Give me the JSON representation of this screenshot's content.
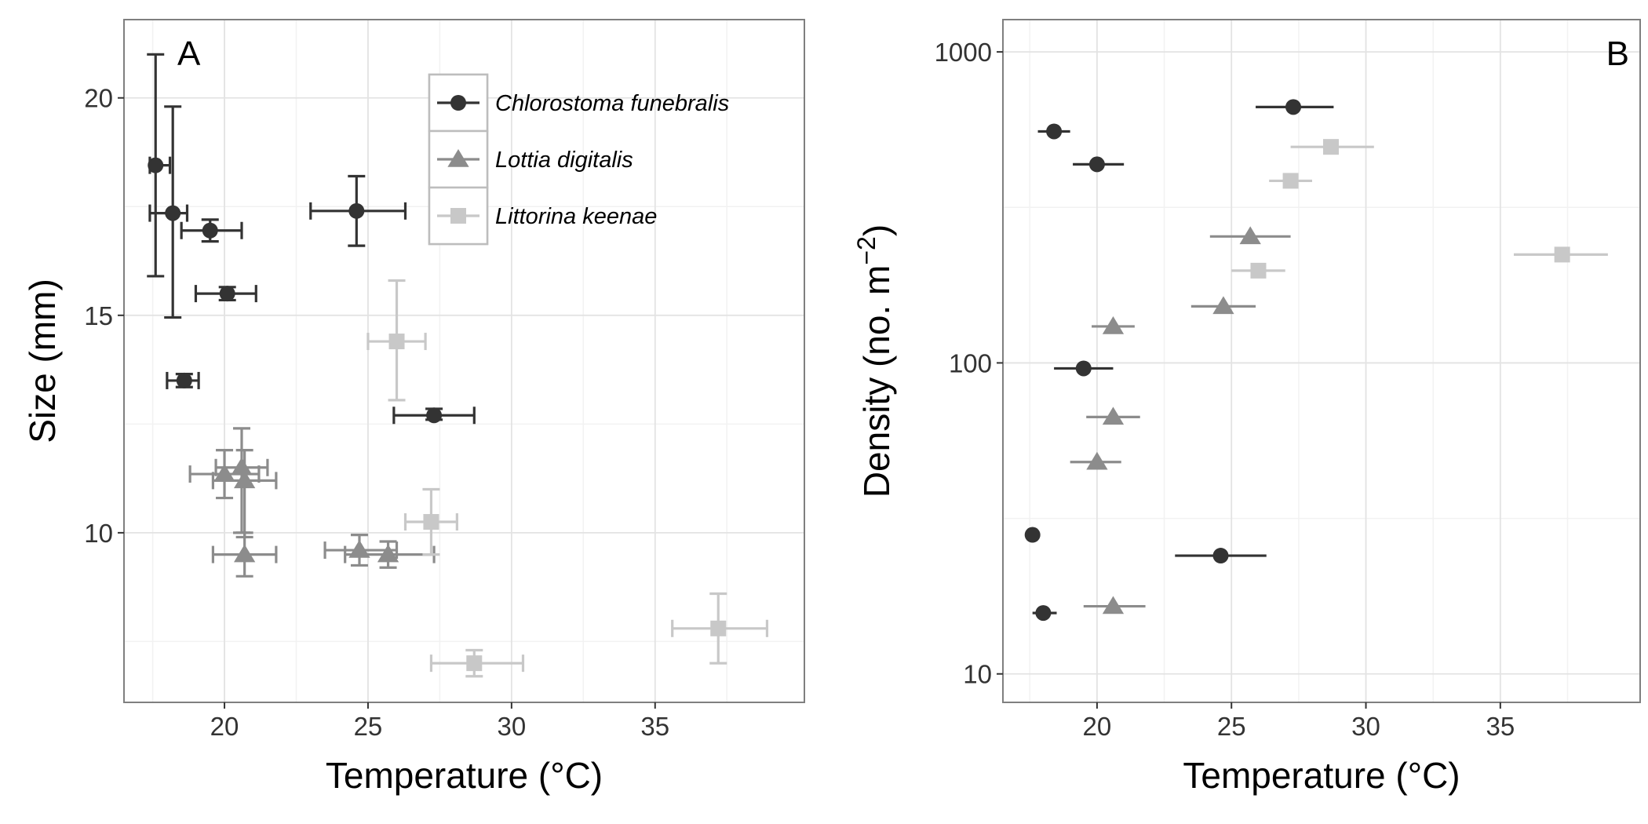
{
  "figure": {
    "legend": {
      "entries": [
        {
          "label": "Chlorostoma funebralis",
          "series": "chlorostoma"
        },
        {
          "label": "Lottia digitalis",
          "series": "lottia"
        },
        {
          "label": "Littorina keenae",
          "series": "littorina"
        }
      ]
    }
  },
  "chart_data": [
    {
      "panel_label": "A",
      "type": "scatter",
      "xlabel": "Temperature (°C)",
      "ylabel": "Size (mm)",
      "xlim": [
        16.5,
        40.2
      ],
      "ylim": [
        6.1,
        21.8
      ],
      "xticks": [
        20,
        25,
        30,
        35
      ],
      "yticks": [
        10,
        15,
        20
      ],
      "x_tick_labels": [
        "20",
        "25",
        "30",
        "35"
      ],
      "y_tick_labels": [
        "10",
        "15",
        "20"
      ],
      "grid": true,
      "legend_position": "top-right",
      "series": [
        {
          "name": "Chlorostoma funebralis",
          "key": "chlorostoma",
          "marker": "circle",
          "color": "#333333",
          "points": [
            {
              "x": 17.6,
              "y": 18.45,
              "xerr": [
                17.4,
                18.1
              ],
              "yerr": [
                15.9,
                21.0
              ]
            },
            {
              "x": 18.2,
              "y": 17.35,
              "xerr": [
                17.4,
                18.7
              ],
              "yerr": [
                14.95,
                19.8
              ]
            },
            {
              "x": 19.5,
              "y": 16.95,
              "xerr": [
                18.5,
                20.6
              ],
              "yerr": [
                16.7,
                17.2
              ]
            },
            {
              "x": 20.1,
              "y": 15.5,
              "xerr": [
                19.0,
                21.1
              ],
              "yerr": [
                15.35,
                15.65
              ]
            },
            {
              "x": 18.6,
              "y": 13.5,
              "xerr": [
                18.0,
                19.1
              ],
              "yerr": [
                13.35,
                13.65
              ]
            },
            {
              "x": 24.6,
              "y": 17.4,
              "xerr": [
                23.0,
                26.3
              ],
              "yerr": [
                16.6,
                18.2
              ]
            },
            {
              "x": 27.3,
              "y": 12.7,
              "xerr": [
                25.9,
                28.7
              ],
              "yerr": [
                12.6,
                12.85
              ]
            }
          ]
        },
        {
          "name": "Lottia digitalis",
          "key": "lottia",
          "marker": "triangle",
          "color": "#8c8c8c",
          "points": [
            {
              "x": 20.0,
              "y": 11.35,
              "xerr": [
                18.8,
                21.2
              ],
              "yerr": [
                10.8,
                11.9
              ]
            },
            {
              "x": 20.6,
              "y": 11.5,
              "xerr": [
                19.7,
                21.5
              ],
              "yerr": [
                10.0,
                12.4
              ]
            },
            {
              "x": 20.7,
              "y": 11.2,
              "xerr": [
                19.6,
                21.8
              ],
              "yerr": [
                9.9,
                11.9
              ]
            },
            {
              "x": 20.7,
              "y": 9.5,
              "xerr": [
                19.6,
                21.8
              ],
              "yerr": [
                9.0,
                10.0
              ]
            },
            {
              "x": 24.7,
              "y": 9.6,
              "xerr": [
                23.5,
                26.0
              ],
              "yerr": [
                9.25,
                9.95
              ]
            },
            {
              "x": 25.7,
              "y": 9.5,
              "xerr": [
                24.2,
                27.3
              ],
              "yerr": [
                9.2,
                9.8
              ]
            }
          ]
        },
        {
          "name": "Littorina keenae",
          "key": "littorina",
          "marker": "square",
          "color": "#c8c8c8",
          "points": [
            {
              "x": 26.0,
              "y": 14.4,
              "xerr": [
                25.0,
                27.0
              ],
              "yerr": [
                13.05,
                15.8
              ]
            },
            {
              "x": 27.2,
              "y": 10.25,
              "xerr": [
                26.3,
                28.1
              ],
              "yerr": [
                9.5,
                11.0
              ]
            },
            {
              "x": 28.7,
              "y": 7.0,
              "xerr": [
                27.2,
                30.4
              ],
              "yerr": [
                6.7,
                7.3
              ]
            },
            {
              "x": 37.2,
              "y": 7.8,
              "xerr": [
                35.6,
                38.9
              ],
              "yerr": [
                7.0,
                8.6
              ]
            }
          ]
        }
      ]
    },
    {
      "panel_label": "B",
      "type": "scatter",
      "xlabel": "Temperature (°C)",
      "ylabel": "Density (no. m⁻²)",
      "ylabel_main": "Density (no. m",
      "ylabel_exponent": "−2",
      "ylabel_close": ")",
      "yscale": "log",
      "xlim": [
        16.5,
        40.2
      ],
      "ylim": [
        8.1,
        1270
      ],
      "xticks": [
        20,
        25,
        30,
        35
      ],
      "yticks": [
        10,
        100,
        1000
      ],
      "x_tick_labels": [
        "20",
        "25",
        "30",
        "35"
      ],
      "y_tick_labels": [
        "10",
        "100",
        "1000"
      ],
      "grid": true,
      "series": [
        {
          "name": "Chlorostoma funebralis",
          "key": "chlorostoma",
          "marker": "circle",
          "color": "#333333",
          "points": [
            {
              "x": 18.4,
              "y": 555,
              "xerr": [
                17.8,
                19.0
              ]
            },
            {
              "x": 20.0,
              "y": 435,
              "xerr": [
                19.1,
                21.0
              ]
            },
            {
              "x": 27.3,
              "y": 665,
              "xerr": [
                25.9,
                28.8
              ]
            },
            {
              "x": 19.5,
              "y": 96,
              "xerr": [
                18.4,
                20.6
              ]
            },
            {
              "x": 17.6,
              "y": 28,
              "xerr": [
                17.4,
                17.8
              ]
            },
            {
              "x": 24.6,
              "y": 24,
              "xerr": [
                22.9,
                26.3
              ]
            },
            {
              "x": 18.0,
              "y": 15.7,
              "xerr": [
                17.6,
                18.5
              ]
            }
          ]
        },
        {
          "name": "Lottia digitalis",
          "key": "lottia",
          "marker": "triangle",
          "color": "#8c8c8c",
          "points": [
            {
              "x": 25.7,
              "y": 255,
              "xerr": [
                24.2,
                27.2
              ]
            },
            {
              "x": 24.7,
              "y": 152,
              "xerr": [
                23.5,
                25.9
              ]
            },
            {
              "x": 20.6,
              "y": 131,
              "xerr": [
                19.8,
                21.4
              ]
            },
            {
              "x": 20.6,
              "y": 67,
              "xerr": [
                19.6,
                21.6
              ]
            },
            {
              "x": 20.0,
              "y": 48,
              "xerr": [
                19.0,
                20.9
              ]
            },
            {
              "x": 20.6,
              "y": 16.5,
              "xerr": [
                19.5,
                21.8
              ]
            }
          ]
        },
        {
          "name": "Littorina keenae",
          "key": "littorina",
          "marker": "square",
          "color": "#c8c8c8",
          "points": [
            {
              "x": 28.7,
              "y": 495,
              "xerr": [
                27.2,
                30.3
              ]
            },
            {
              "x": 27.2,
              "y": 385,
              "xerr": [
                26.4,
                28.0
              ]
            },
            {
              "x": 26.0,
              "y": 198,
              "xerr": [
                25.0,
                27.0
              ]
            },
            {
              "x": 37.3,
              "y": 223,
              "xerr": [
                35.5,
                39.0
              ]
            }
          ]
        }
      ]
    }
  ]
}
